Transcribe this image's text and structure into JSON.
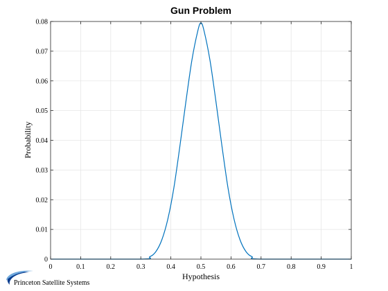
{
  "chart_data": {
    "type": "line",
    "title": "Gun Problem",
    "xlabel": "Hypothesis",
    "ylabel": "Probability",
    "xlim": [
      0,
      1
    ],
    "ylim": [
      0,
      0.08
    ],
    "xticks": [
      "0",
      "0.1",
      "0.2",
      "0.3",
      "0.4",
      "0.5",
      "0.6",
      "0.7",
      "0.8",
      "0.9",
      "1"
    ],
    "yticks": [
      "0",
      "0.01",
      "0.02",
      "0.03",
      "0.04",
      "0.05",
      "0.06",
      "0.07",
      "0.08"
    ],
    "grid": true,
    "legend": "none",
    "series": [
      {
        "color": "#0072bd",
        "x": [
          0,
          0.3,
          0.33,
          0.35,
          0.37,
          0.39,
          0.41,
          0.43,
          0.45,
          0.47,
          0.49,
          0.5,
          0.51,
          0.53,
          0.55,
          0.57,
          0.59,
          0.61,
          0.63,
          0.65,
          0.67,
          0.7,
          1
        ],
        "y": [
          0,
          0,
          0.0008,
          0.0025,
          0.0065,
          0.0135,
          0.024,
          0.038,
          0.053,
          0.067,
          0.077,
          0.0795,
          0.077,
          0.067,
          0.053,
          0.038,
          0.024,
          0.0135,
          0.0065,
          0.0025,
          0.0008,
          0,
          0
        ]
      }
    ]
  },
  "logo": {
    "text": "Princeton Satellite Systems",
    "colors": [
      "#0a3d8f",
      "#6fa8dc"
    ]
  }
}
